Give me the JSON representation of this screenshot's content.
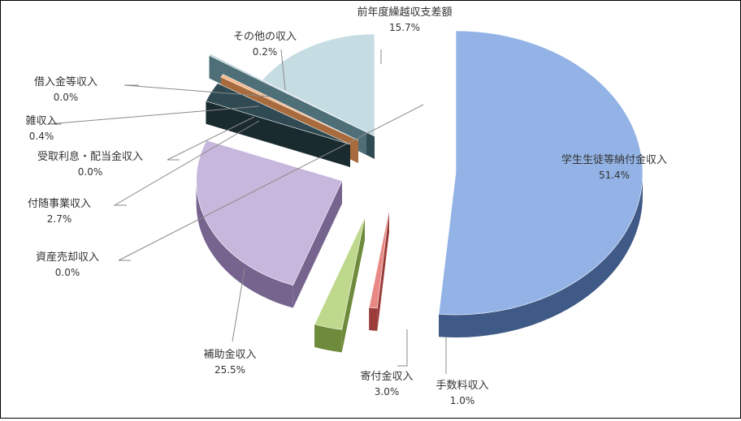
{
  "chart_data": {
    "type": "pie",
    "title": "",
    "slices": [
      {
        "label": "学生生徒等納付金収入",
        "value": 51.4,
        "pct_text": "51.4%",
        "color": "#93B3E6",
        "edge": "#3F5A86"
      },
      {
        "label": "手数料収入",
        "value": 1.0,
        "pct_text": "1.0%",
        "color": "#E98986",
        "edge": "#9A3C39"
      },
      {
        "label": "寄付金収入",
        "value": 3.0,
        "pct_text": "3.0%",
        "color": "#BFD98C",
        "edge": "#6E8A3B"
      },
      {
        "label": "補助金収入",
        "value": 25.5,
        "pct_text": "25.5%",
        "color": "#C7B7DD",
        "edge": "#76648F"
      },
      {
        "label": "資産売却収入",
        "value": 0.0,
        "pct_text": "0.0%",
        "color": "#D9D9D9",
        "edge": "#808080"
      },
      {
        "label": "付随事業収入",
        "value": 2.7,
        "pct_text": "2.7%",
        "color": "#2F4A52",
        "edge": "#1A2B30"
      },
      {
        "label": "受取利息・配当金収入",
        "value": 0.0,
        "pct_text": "0.0%",
        "color": "#D9D9D9",
        "edge": "#808080"
      },
      {
        "label": "雑収入",
        "value": 0.4,
        "pct_text": "0.4%",
        "color": "#F6B98A",
        "edge": "#A86B3D"
      },
      {
        "label": "借入金等収入",
        "value": 0.0,
        "pct_text": "0.0%",
        "color": "#D9D9D9",
        "edge": "#808080"
      },
      {
        "label": "その他の収入",
        "value": 0.2,
        "pct_text": "0.2%",
        "color": "#B9D3DA",
        "edge": "#4E6F78"
      },
      {
        "label": "前年度繰越収支差額",
        "value": 15.7,
        "pct_text": "15.7%",
        "color": "#C6DCE3",
        "edge": "#2F4A52"
      }
    ]
  }
}
